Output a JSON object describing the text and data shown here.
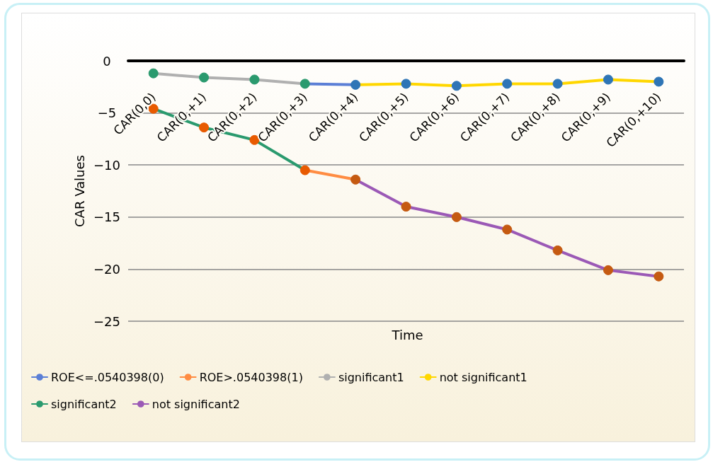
{
  "chart_data": {
    "type": "line",
    "xlabel": "Time",
    "ylabel": "CAR Values",
    "categories": [
      "CAR(0,0)",
      "CAR(0,+1)",
      "CAR(0,+2)",
      "CAR(0,+3)",
      "CAR(0,+4)",
      "CAR(0,+5)",
      "CAR(0,+6)",
      "CAR(0,+7)",
      "CAR(0,+8)",
      "CAR(0,+9)",
      "CAR(0,+10)"
    ],
    "series": [
      {
        "name": "ROE<=.0540398(0)",
        "color": "#5b7fd6",
        "marker": "none",
        "values": [
          null,
          null,
          null,
          -2.2,
          -2.3,
          null,
          null,
          null,
          null,
          null,
          null
        ]
      },
      {
        "name": "ROE>.0540398(1)",
        "color": "#ff8c42",
        "marker": "none",
        "values": [
          null,
          null,
          null,
          -10.5,
          -11.4,
          null,
          null,
          null,
          null,
          null,
          null
        ]
      },
      {
        "name": "significant1",
        "color": "#b0b0b0",
        "marker": "circle",
        "colors": [
          "#2a9a6e",
          "#2a9a6e",
          "#2a9a6e",
          "#2a9a6e",
          null,
          null,
          null,
          null,
          null,
          null,
          null
        ],
        "values": [
          -1.2,
          -1.6,
          -1.8,
          -2.2,
          null,
          null,
          null,
          null,
          null,
          null,
          null
        ]
      },
      {
        "name": "not significant1",
        "color": "#ffd700",
        "marker": "circle",
        "colors": [
          null,
          null,
          null,
          null,
          "#2e75b6",
          "#2e75b6",
          "#2e75b6",
          "#2e75b6",
          "#2e75b6",
          "#2e75b6",
          "#2e75b6"
        ],
        "values": [
          null,
          null,
          null,
          null,
          -2.3,
          -2.2,
          -2.4,
          -2.2,
          -2.2,
          -1.8,
          -2.0
        ]
      },
      {
        "name": "significant2",
        "color": "#2a9a6e",
        "marker": "circle",
        "colors": [
          "#e85a00",
          "#e85a00",
          "#e85a00",
          "#e85a00",
          null,
          null,
          null,
          null,
          null,
          null,
          null
        ],
        "values": [
          -4.6,
          -6.4,
          -7.6,
          -10.5,
          null,
          null,
          null,
          null,
          null,
          null,
          null
        ]
      },
      {
        "name": "not significant2",
        "color": "#9b59b6",
        "marker": "circle",
        "colors": [
          null,
          null,
          null,
          null,
          "#c55a11",
          "#c55a11",
          "#c55a11",
          "#c55a11",
          "#c55a11",
          "#c55a11",
          "#c55a11"
        ],
        "values": [
          null,
          null,
          null,
          null,
          -11.4,
          -14.0,
          -15.0,
          -16.2,
          -18.2,
          -20.1,
          -20.7
        ]
      }
    ],
    "ylim": [
      -25,
      0
    ],
    "yticks": [
      -25,
      -20,
      -15,
      -10,
      -5,
      0
    ],
    "grid": "y",
    "legend": "bottom",
    "line_style": "solid"
  }
}
